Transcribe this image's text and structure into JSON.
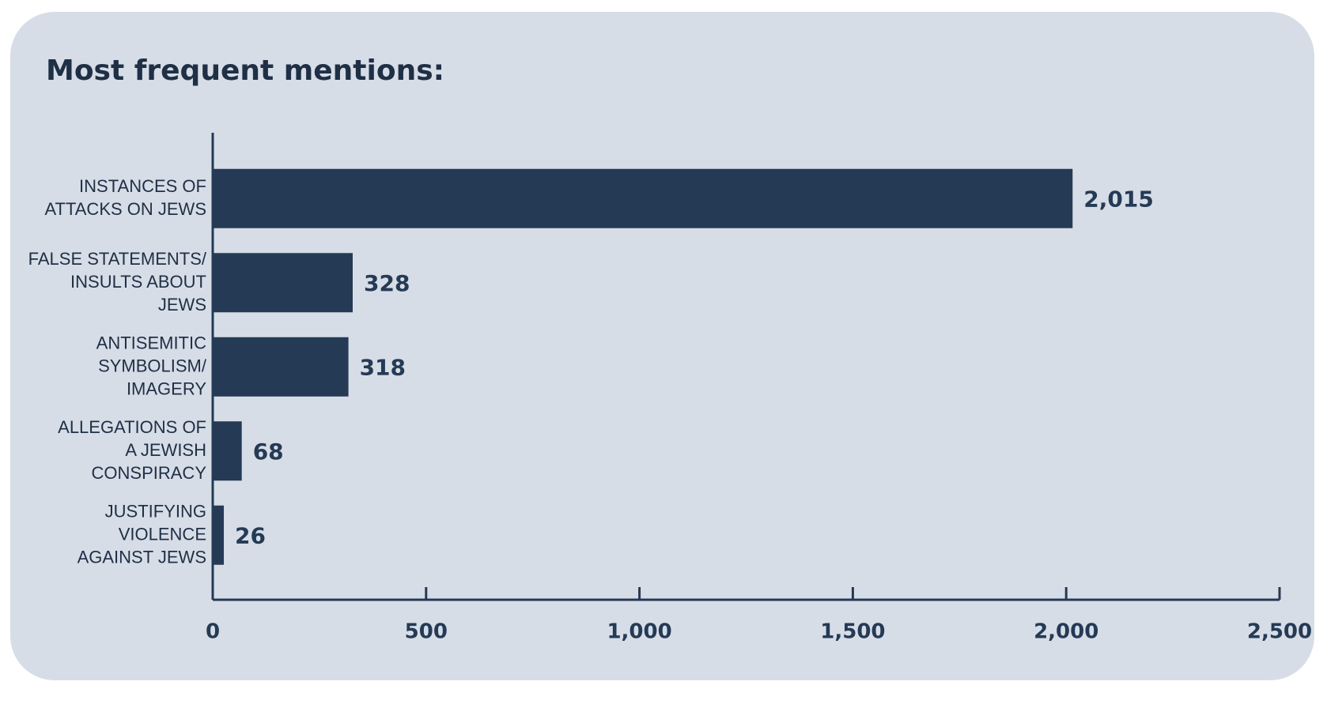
{
  "chart_data": {
    "type": "bar",
    "orientation": "horizontal",
    "title": "Most frequent mentions:",
    "categories": [
      "INSTANCES OF\nATTACKS ON JEWS",
      "FALSE STATEMENTS/\nINSULTS ABOUT\nJEWS",
      "ANTISEMITIC\nSYMBOLISM/\nIMAGERY",
      "ALLEGATIONS OF\nA JEWISH\nCONSPIRACY",
      "JUSTIFYING\nVIOLENCE\nAGAINST JEWS"
    ],
    "values": [
      2015,
      328,
      318,
      68,
      26
    ],
    "value_labels": [
      "2,015",
      "328",
      "318",
      "68",
      "26"
    ],
    "color": "#243a55",
    "xlim": [
      0,
      2500
    ],
    "xticks": [
      0,
      500,
      {
        "value": 1000,
        "label": "1,000"
      },
      {
        "value": 1500,
        "label": "1,500"
      },
      {
        "value": 2000,
        "label": "2,000"
      },
      {
        "value": 2500,
        "label": "2,500"
      }
    ],
    "grid": false
  }
}
